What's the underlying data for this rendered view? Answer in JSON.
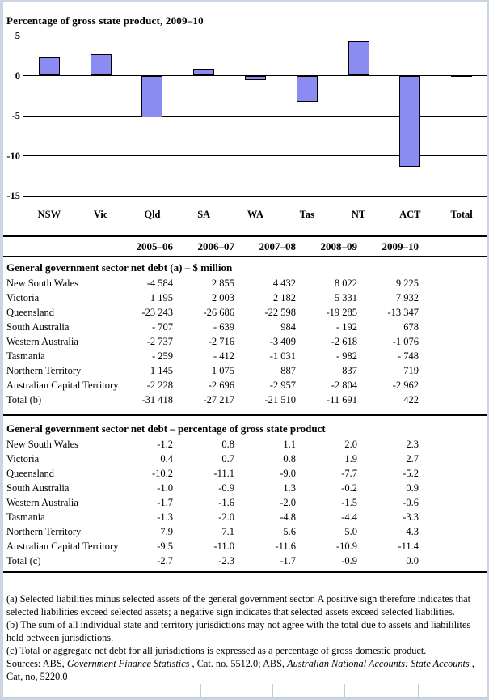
{
  "chart_data": [
    {
      "type": "bar",
      "title": "Percentage of gross state product, 2009–10",
      "categories": [
        "NSW",
        "Vic",
        "Qld",
        "SA",
        "WA",
        "Tas",
        "NT",
        "ACT",
        "Total"
      ],
      "values": [
        2.3,
        2.7,
        -5.2,
        0.9,
        -0.6,
        -3.3,
        4.3,
        -11.4,
        0.0
      ],
      "ylim": [
        -15,
        5
      ],
      "y_ticks": [
        5,
        0,
        -5,
        -10,
        -15
      ],
      "grid": true,
      "legend": "none",
      "bar_color": "#8b8bf2",
      "bar_border_color": "#000000"
    },
    {
      "type": "table",
      "title": "General government sector net debt (a) – $ million",
      "columns": [
        "",
        "2005–06",
        "2006–07",
        "2007–08",
        "2008–09",
        "2009–10"
      ],
      "rows": [
        [
          "New South Wales",
          "-4 584",
          "2 855",
          "4 432",
          "8 022",
          "9 225"
        ],
        [
          "Victoria",
          "1 195",
          "2 003",
          "2 182",
          "5 331",
          "7 932"
        ],
        [
          "Queensland",
          "-23 243",
          "-26 686",
          "-22 598",
          "-19 285",
          "-13 347"
        ],
        [
          "South Australia",
          "- 707",
          "- 639",
          "984",
          "- 192",
          "678"
        ],
        [
          "Western Australia",
          "-2 737",
          "-2 716",
          "-3 409",
          "-2 618",
          "-1 076"
        ],
        [
          "Tasmania",
          "- 259",
          "- 412",
          "-1 031",
          "- 982",
          "- 748"
        ],
        [
          "Northern Territory",
          "1 145",
          "1 075",
          "887",
          "837",
          "719"
        ],
        [
          "Australian Capital Territory",
          "-2 228",
          "-2 696",
          "-2 957",
          "-2 804",
          "-2 962"
        ],
        [
          "Total (b)",
          "-31 418",
          "-27 217",
          "-21 510",
          "-11 691",
          "422"
        ]
      ]
    },
    {
      "type": "table",
      "title": "General government sector net debt – percentage of gross state product",
      "columns": [
        "",
        "2005–06",
        "2006–07",
        "2007–08",
        "2008–09",
        "2009–10"
      ],
      "rows": [
        [
          "New South Wales",
          "-1.2",
          "0.8",
          "1.1",
          "2.0",
          "2.3"
        ],
        [
          "Victoria",
          "0.4",
          "0.7",
          "0.8",
          "1.9",
          "2.7"
        ],
        [
          "Queensland",
          "-10.2",
          "-11.1",
          "-9.0",
          "-7.7",
          "-5.2"
        ],
        [
          "South Australia",
          "-1.0",
          "-0.9",
          "1.3",
          "-0.2",
          "0.9"
        ],
        [
          "Western Australia",
          "-1.7",
          "-1.6",
          "-2.0",
          "-1.5",
          "-0.6"
        ],
        [
          "Tasmania",
          "-1.3",
          "-2.0",
          "-4.8",
          "-4.4",
          "-3.3"
        ],
        [
          "Northern Territory",
          "7.9",
          "7.1",
          "5.6",
          "5.0",
          "4.3"
        ],
        [
          "Australian Capital Territory",
          "-9.5",
          "-11.0",
          "-11.6",
          "-10.9",
          "-11.4"
        ],
        [
          "Total (c)",
          "-2.7",
          "-2.3",
          "-1.7",
          "-0.9",
          "0.0"
        ]
      ]
    }
  ],
  "footnotes": [
    "(a) Selected liabilities minus selected assets of the general government sector. A positive sign therefore indicates that selected liabilities exceed selected assets; a negative sign indicates that selected assets exceed selected liabilities.",
    "(b) The sum of all individual state and territory jurisdictions may not agree with the total due to assets and liabililites held between jurisdictions.",
    "(c) Total or aggregate net debt for all jurisdictions is expressed as a percentage of gross domestic product."
  ],
  "sources": {
    "segments": [
      {
        "text": "Sources: ABS, ",
        "italic": false
      },
      {
        "text": "Government Finance Statistics",
        "italic": true
      },
      {
        "text": " , Cat. no. 5512.0; ABS, ",
        "italic": false
      },
      {
        "text": "Australian National Accounts: State Accounts",
        "italic": true
      },
      {
        "text": " , Cat, no, 5220.0",
        "italic": false
      }
    ]
  },
  "colors": {
    "bar_fill": "#8b8bf2",
    "frame_border": "#ccd5e2",
    "sheet_gridline": "#c4ccd9",
    "axis_line": "#000000"
  }
}
